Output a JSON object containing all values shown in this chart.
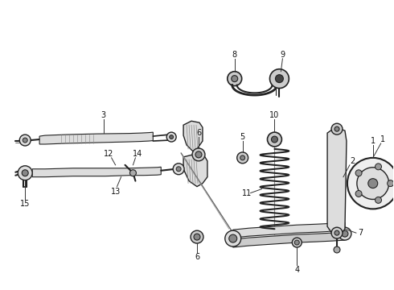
{
  "bg_color": "#ffffff",
  "fig_width": 4.9,
  "fig_height": 3.6,
  "dpi": 100,
  "line_color": "#222222",
  "lw_main": 1.2,
  "lw_thin": 0.7,
  "label_fs": 6.5
}
